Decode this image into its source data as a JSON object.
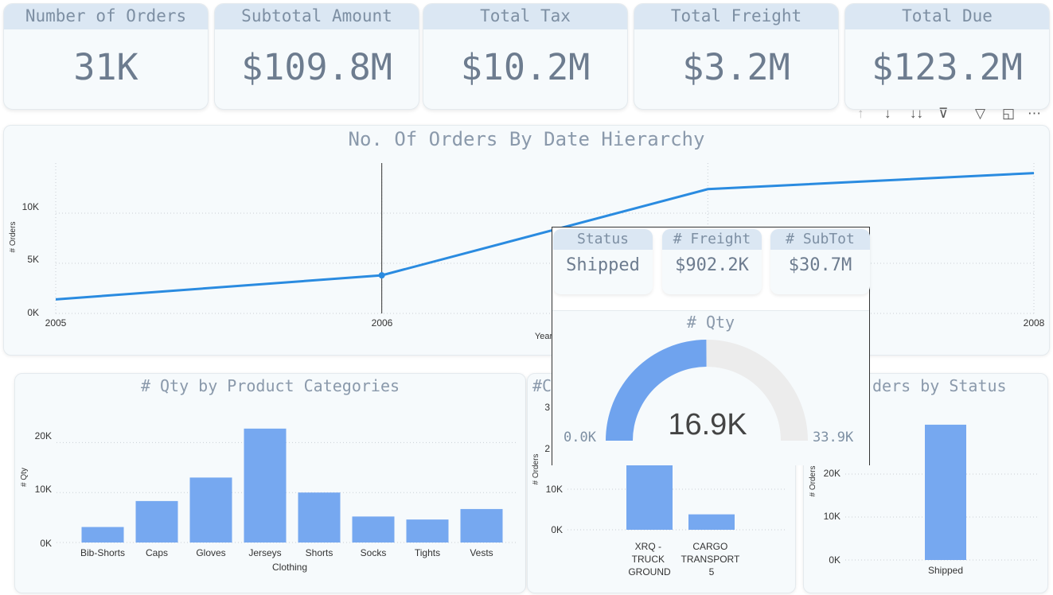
{
  "kpis": [
    {
      "title": "Number of Orders",
      "value": "31K"
    },
    {
      "title": "Subtotal Amount",
      "value": "$109.8M"
    },
    {
      "title": "Total Tax",
      "value": "$10.2M"
    },
    {
      "title": "Total Freight",
      "value": "$3.2M"
    },
    {
      "title": "Total Due",
      "value": "$123.2M"
    }
  ],
  "visual_header_icons": [
    "arrow-up-icon",
    "arrow-down-icon",
    "double-arrow-down-icon",
    "expand-hierarchy-icon",
    "filter-icon",
    "focus-mode-icon",
    "more-options-icon"
  ],
  "colors": {
    "accent_line": "#2a8be0",
    "bar": "#76a8f0",
    "gauge_fill": "#6fa3ee",
    "gauge_track": "#ececec"
  },
  "line_chart": {
    "title": "No. Of Orders By Date Hierarchy",
    "ylabel": "# Orders",
    "xlabel": "Year",
    "y_ticks": [
      "10K",
      "5K",
      "0K"
    ],
    "x_ticks": [
      "2005",
      "2006",
      "2008"
    ]
  },
  "bar_chart_1": {
    "title": "# Qty by Product Categories",
    "ylabel": "# Qty",
    "xlabel": "Clothing",
    "y_ticks": [
      "20K",
      "10K",
      "0K"
    ]
  },
  "bar_chart_2": {
    "title_fragment": "#C",
    "ylabel": "# Orders",
    "y_ticks": [
      "3",
      "2",
      "10K",
      "0K"
    ],
    "categories": [
      [
        "XRQ -",
        "TRUCK",
        "GROUND"
      ],
      [
        "CARGO",
        "TRANSPORT",
        "5"
      ]
    ]
  },
  "bar_chart_3": {
    "title_fragment": "ders by Status",
    "ylabel": "# Orders",
    "y_ticks": [
      "20K",
      "10K",
      "0K"
    ]
  },
  "tooltip": {
    "cards": [
      {
        "title": "Status",
        "value": "Shipped"
      },
      {
        "title": "# Freight",
        "value": "$902.2K"
      },
      {
        "title": "# SubTot",
        "value": "$30.7M"
      }
    ],
    "gauge": {
      "title": "# Qty",
      "value_label": "16.9K",
      "min_label": "0.0K",
      "max_label": "33.9K"
    }
  },
  "chart_data": [
    {
      "type": "line",
      "title": "No. Of Orders By Date Hierarchy",
      "xlabel": "Year",
      "ylabel": "# Orders",
      "x": [
        2005,
        2006,
        2007,
        2008
      ],
      "series": [
        {
          "values": [
            1400,
            3800,
            12400,
            14000
          ]
        }
      ],
      "ylim": [
        0,
        15000
      ],
      "highlight_x": 2006
    },
    {
      "type": "bar",
      "title": "# Qty by Product Categories",
      "xlabel": "Clothing",
      "ylabel": "# Qty",
      "categories": [
        "Bib-Shorts",
        "Caps",
        "Gloves",
        "Jerseys",
        "Shorts",
        "Socks",
        "Tights",
        "Vests"
      ],
      "values": [
        3100,
        8300,
        13000,
        22800,
        10000,
        5200,
        4600,
        6700
      ],
      "ylim": [
        0,
        25000
      ]
    },
    {
      "type": "bar",
      "ylabel": "# Orders",
      "categories": [
        "XRQ - TRUCK GROUND",
        "CARGO TRANSPORT 5"
      ],
      "values": [
        16000,
        3800
      ],
      "ylim": [
        0,
        34000
      ]
    },
    {
      "type": "bar",
      "ylabel": "# Orders",
      "categories": [
        "Shipped"
      ],
      "values": [
        31500
      ],
      "ylim": [
        0,
        35000
      ]
    },
    {
      "type": "gauge",
      "title": "# Qty",
      "value": 16.9,
      "min": 0.0,
      "max": 33.9,
      "unit": "K"
    }
  ]
}
